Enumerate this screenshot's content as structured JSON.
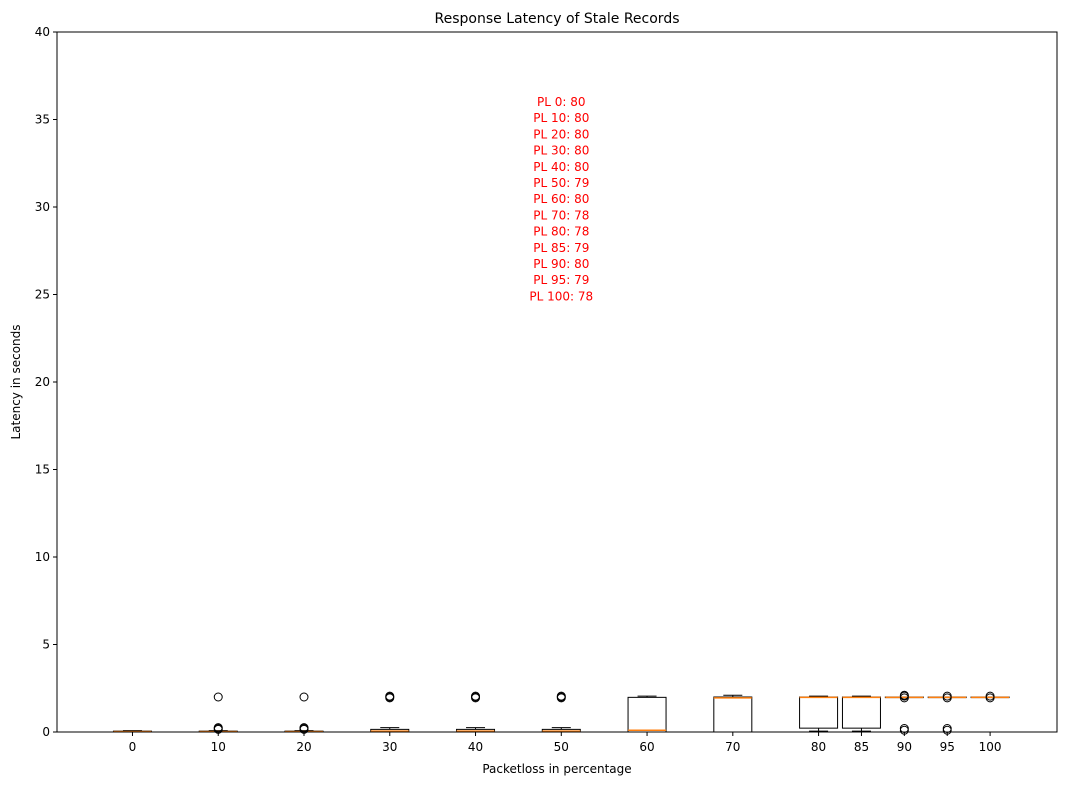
{
  "chart_data": {
    "type": "box",
    "title": "Response Latency of Stale Records",
    "xlabel": "Packetloss in percentage",
    "ylabel": "Latency in seconds",
    "ylim": [
      0,
      40
    ],
    "yticks": [
      0,
      5,
      10,
      15,
      20,
      25,
      30,
      35,
      40
    ],
    "grid": false,
    "categories": [
      "0",
      "10",
      "20",
      "30",
      "40",
      "50",
      "60",
      "70",
      "80",
      "85",
      "90",
      "95",
      "100"
    ],
    "x": [
      0,
      10,
      20,
      30,
      40,
      50,
      60,
      70,
      80,
      85,
      90,
      95,
      100
    ],
    "boxes": [
      {
        "whislo": 0.0,
        "q1": 0.0,
        "med": 0.02,
        "q3": 0.05,
        "whishi": 0.08,
        "fliers": []
      },
      {
        "whislo": 0.0,
        "q1": 0.0,
        "med": 0.02,
        "q3": 0.05,
        "whishi": 0.08,
        "fliers": [
          0.15,
          0.2,
          0.25,
          2.0
        ]
      },
      {
        "whislo": 0.0,
        "q1": 0.0,
        "med": 0.02,
        "q3": 0.05,
        "whishi": 0.08,
        "fliers": [
          0.15,
          0.2,
          0.25,
          2.0
        ]
      },
      {
        "whislo": 0.0,
        "q1": 0.0,
        "med": 0.05,
        "q3": 0.15,
        "whishi": 0.25,
        "fliers": [
          1.95,
          2.0,
          2.05
        ]
      },
      {
        "whislo": 0.0,
        "q1": 0.0,
        "med": 0.05,
        "q3": 0.15,
        "whishi": 0.25,
        "fliers": [
          1.95,
          2.0,
          2.05
        ]
      },
      {
        "whislo": 0.0,
        "q1": 0.0,
        "med": 0.05,
        "q3": 0.15,
        "whishi": 0.25,
        "fliers": [
          1.95,
          2.0,
          2.05
        ]
      },
      {
        "whislo": 0.0,
        "q1": 0.0,
        "med": 0.1,
        "q3": 1.98,
        "whishi": 2.05,
        "fliers": []
      },
      {
        "whislo": 0.0,
        "q1": 0.0,
        "med": 1.95,
        "q3": 2.0,
        "whishi": 2.1,
        "fliers": []
      },
      {
        "whislo": 0.05,
        "q1": 0.22,
        "med": 1.98,
        "q3": 2.0,
        "whishi": 2.05,
        "fliers": []
      },
      {
        "whislo": 0.05,
        "q1": 0.22,
        "med": 1.98,
        "q3": 2.0,
        "whishi": 2.05,
        "fliers": []
      },
      {
        "whislo": 1.98,
        "q1": 1.98,
        "med": 1.98,
        "q3": 2.0,
        "whishi": 2.0,
        "fliers": [
          0.1,
          0.2,
          1.95,
          2.05,
          2.1
        ]
      },
      {
        "whislo": 1.98,
        "q1": 1.98,
        "med": 1.98,
        "q3": 2.0,
        "whishi": 2.0,
        "fliers": [
          0.1,
          0.2,
          1.95,
          2.05
        ]
      },
      {
        "whislo": 1.98,
        "q1": 1.98,
        "med": 1.98,
        "q3": 2.0,
        "whishi": 2.0,
        "fliers": [
          1.95,
          2.05
        ]
      }
    ],
    "annotation": {
      "color": "#ff0000",
      "x": 50,
      "y_top": 36,
      "lines": [
        "PL 0: 80",
        "PL 10: 80",
        "PL 20: 80",
        "PL 30: 80",
        "PL 40: 80",
        "PL 50: 79",
        "PL 60: 80",
        "PL 70: 78",
        "PL 80: 78",
        "PL 85: 79",
        "PL 90: 80",
        "PL 95: 79",
        "PL 100: 78"
      ]
    },
    "colors": {
      "box": "#000000",
      "median": "#ff7f0e",
      "annotation": "#ff0000"
    }
  }
}
